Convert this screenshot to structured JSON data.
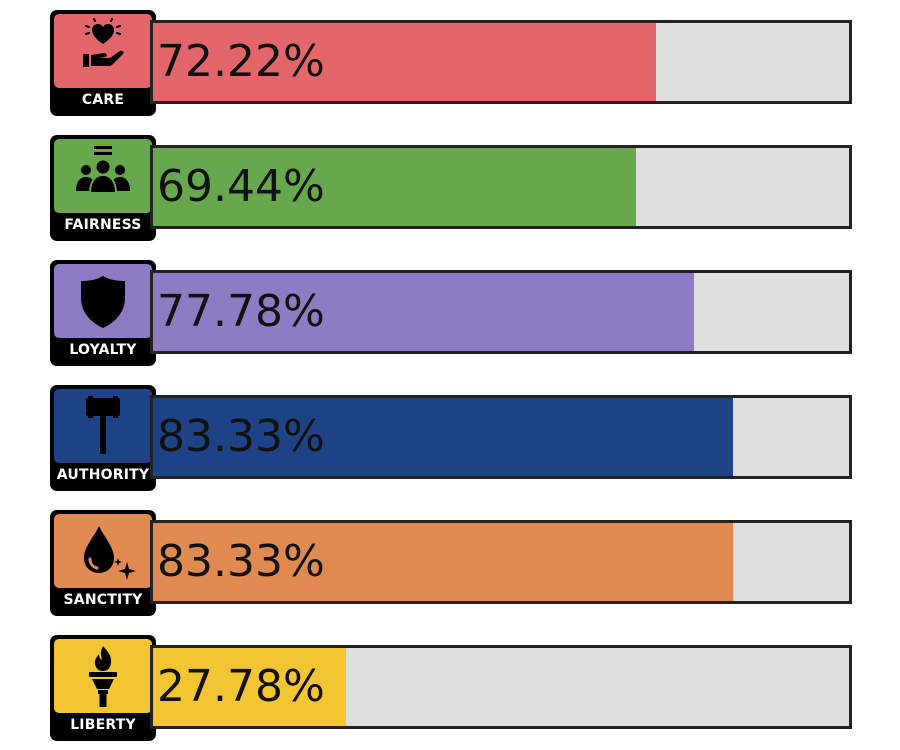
{
  "chart_data": {
    "type": "bar",
    "orientation": "horizontal",
    "xlim": [
      0,
      100
    ],
    "categories": [
      "CARE",
      "FAIRNESS",
      "LOYALTY",
      "AUTHORITY",
      "SANCTITY",
      "LIBERTY"
    ],
    "values": [
      72.22,
      69.44,
      77.78,
      83.33,
      83.33,
      27.78
    ],
    "value_labels": [
      "72.22%",
      "69.44%",
      "77.78%",
      "83.33%",
      "83.33%",
      "27.78%"
    ],
    "colors": [
      "#e3676a",
      "#67a84f",
      "#8d7cc3",
      "#1e4487",
      "#e08a52",
      "#f3c533"
    ],
    "icons": [
      "heart-hand-icon",
      "people-group-icon",
      "shield-icon",
      "gavel-icon",
      "drop-sparkle-icon",
      "torch-icon"
    ],
    "track_color": "#dedede"
  }
}
